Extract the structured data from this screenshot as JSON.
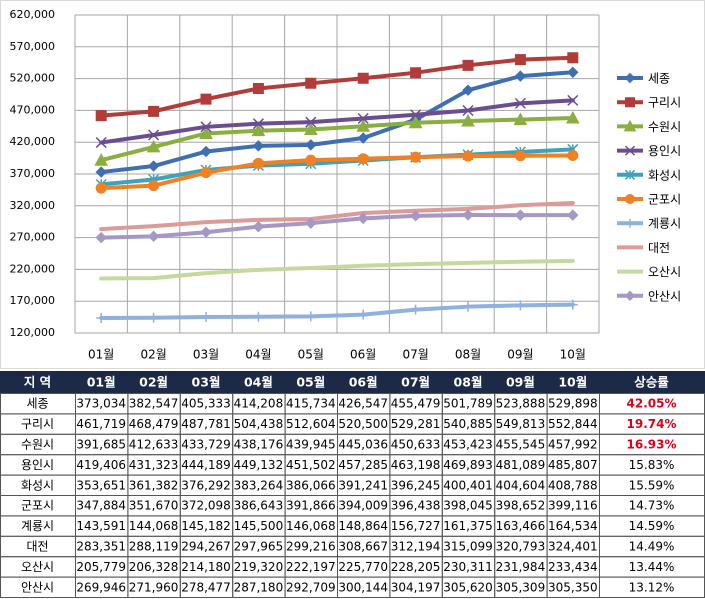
{
  "chart_data": {
    "type": "line",
    "categories": [
      "01월",
      "02월",
      "03월",
      "04월",
      "05월",
      "06월",
      "07월",
      "08월",
      "09월",
      "10월"
    ],
    "ylim": [
      120000,
      620000
    ],
    "yticks": [
      {
        "value": 120000,
        "label": "120,000"
      },
      {
        "value": 170000,
        "label": "170,000"
      },
      {
        "value": 220000,
        "label": "220,000"
      },
      {
        "value": 270000,
        "label": "270,000"
      },
      {
        "value": 320000,
        "label": "320,000"
      },
      {
        "value": 370000,
        "label": "370,000"
      },
      {
        "value": 420000,
        "label": "420,000"
      },
      {
        "value": 470000,
        "label": "470,000"
      },
      {
        "value": 520000,
        "label": "520,000"
      },
      {
        "value": 570000,
        "label": "570,000"
      },
      {
        "value": 620000,
        "label": "620,000"
      }
    ],
    "grid": true,
    "legend": "right",
    "series": [
      {
        "name": "세종",
        "color": "#3f6fb0",
        "marker": "diamond",
        "values": [
          373034,
          382547,
          405333,
          414208,
          415734,
          426547,
          455479,
          501789,
          523888,
          529898
        ]
      },
      {
        "name": "구리시",
        "color": "#b13c3a",
        "marker": "square",
        "values": [
          461719,
          468479,
          487781,
          504438,
          512604,
          520500,
          529281,
          540885,
          549813,
          552844
        ]
      },
      {
        "name": "수원시",
        "color": "#8aae40",
        "marker": "triangle",
        "values": [
          391685,
          412633,
          433729,
          438176,
          439945,
          445036,
          450633,
          453423,
          455545,
          457992
        ]
      },
      {
        "name": "용인시",
        "color": "#6b4e90",
        "marker": "x",
        "values": [
          419406,
          431323,
          444189,
          449132,
          451502,
          457285,
          463198,
          469893,
          481089,
          485807
        ]
      },
      {
        "name": "화성시",
        "color": "#3ea3ba",
        "marker": "star",
        "values": [
          353651,
          361382,
          376292,
          383264,
          386066,
          391241,
          396245,
          400401,
          404604,
          408788
        ]
      },
      {
        "name": "군포시",
        "color": "#ef8124",
        "marker": "circle",
        "values": [
          347884,
          351670,
          372098,
          386643,
          391866,
          394009,
          396438,
          398045,
          398652,
          399116
        ]
      },
      {
        "name": "계룡시",
        "color": "#8fb1de",
        "marker": "plus",
        "values": [
          143591,
          144068,
          145182,
          145500,
          146068,
          148864,
          156727,
          161375,
          163466,
          164534
        ]
      },
      {
        "name": "대전",
        "color": "#dc9a98",
        "marker": null,
        "values": [
          283351,
          288119,
          294267,
          297965,
          299216,
          308667,
          312194,
          315099,
          320793,
          324401
        ]
      },
      {
        "name": "오산시",
        "color": "#c5d99c",
        "marker": null,
        "values": [
          205779,
          206328,
          214180,
          219320,
          222197,
          225770,
          228205,
          230311,
          231984,
          233434
        ]
      },
      {
        "name": "안산시",
        "color": "#a598c4",
        "marker": "diamond",
        "values": [
          269946,
          271960,
          278477,
          287180,
          292709,
          300144,
          304197,
          305620,
          305309,
          305350
        ]
      }
    ]
  },
  "table": {
    "header": [
      "지 역",
      "01월",
      "02월",
      "03월",
      "04월",
      "05월",
      "06월",
      "07월",
      "08월",
      "09월",
      "10월",
      "상승률"
    ],
    "header_color": "#1c2a47",
    "highlight_rows": [
      0,
      1,
      2
    ],
    "highlight_color": "#e0001b",
    "rows": [
      [
        "세종",
        "373,034",
        "382,547",
        "405,333",
        "414,208",
        "415,734",
        "426,547",
        "455,479",
        "501,789",
        "523,888",
        "529,898",
        "42.05%"
      ],
      [
        "구리시",
        "461,719",
        "468,479",
        "487,781",
        "504,438",
        "512,604",
        "520,500",
        "529,281",
        "540,885",
        "549,813",
        "552,844",
        "19.74%"
      ],
      [
        "수원시",
        "391,685",
        "412,633",
        "433,729",
        "438,176",
        "439,945",
        "445,036",
        "450,633",
        "453,423",
        "455,545",
        "457,992",
        "16.93%"
      ],
      [
        "용인시",
        "419,406",
        "431,323",
        "444,189",
        "449,132",
        "451,502",
        "457,285",
        "463,198",
        "469,893",
        "481,089",
        "485,807",
        "15.83%"
      ],
      [
        "화성시",
        "353,651",
        "361,382",
        "376,292",
        "383,264",
        "386,066",
        "391,241",
        "396,245",
        "400,401",
        "404,604",
        "408,788",
        "15.59%"
      ],
      [
        "군포시",
        "347,884",
        "351,670",
        "372,098",
        "386,643",
        "391,866",
        "394,009",
        "396,438",
        "398,045",
        "398,652",
        "399,116",
        "14.73%"
      ],
      [
        "계룡시",
        "143,591",
        "144,068",
        "145,182",
        "145,500",
        "146,068",
        "148,864",
        "156,727",
        "161,375",
        "163,466",
        "164,534",
        "14.59%"
      ],
      [
        "대전",
        "283,351",
        "288,119",
        "294,267",
        "297,965",
        "299,216",
        "308,667",
        "312,194",
        "315,099",
        "320,793",
        "324,401",
        "14.49%"
      ],
      [
        "오산시",
        "205,779",
        "206,328",
        "214,180",
        "219,320",
        "222,197",
        "225,770",
        "228,205",
        "230,311",
        "231,984",
        "233,434",
        "13.44%"
      ],
      [
        "안산시",
        "269,946",
        "271,960",
        "278,477",
        "287,180",
        "292,709",
        "300,144",
        "304,197",
        "305,620",
        "305,309",
        "305,350",
        "13.12%"
      ]
    ]
  }
}
